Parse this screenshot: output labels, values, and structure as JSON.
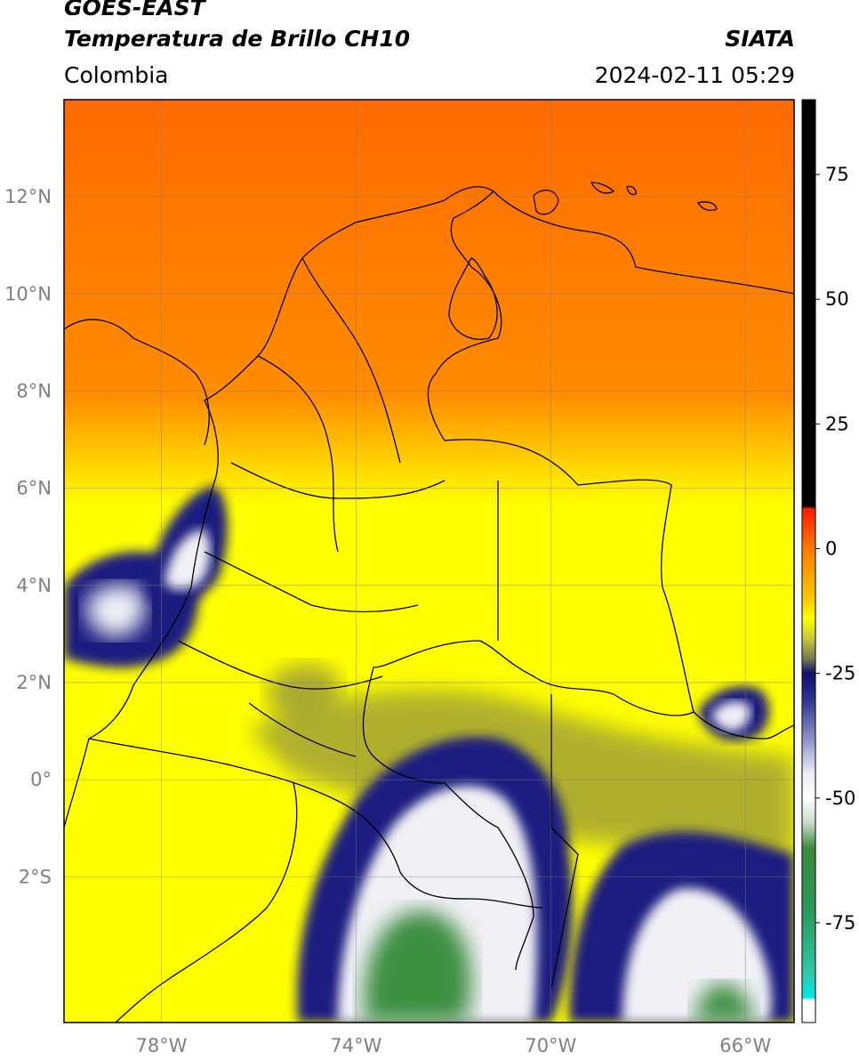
{
  "header": {
    "satellite": "GOES-EAST",
    "product": "Temperatura de Brillo CH10",
    "organization": "SIATA",
    "region": "Colombia",
    "datetime": "2024-02-11 05:29"
  },
  "map": {
    "extent": {
      "lon_min": -80.0,
      "lon_max": -65.0,
      "lat_min": -5.0,
      "lat_max": 14.0
    },
    "latitude_ticks": [
      {
        "value": 12,
        "label": "12°N"
      },
      {
        "value": 10,
        "label": "10°N"
      },
      {
        "value": 8,
        "label": "8°N"
      },
      {
        "value": 6,
        "label": "6°N"
      },
      {
        "value": 4,
        "label": "4°N"
      },
      {
        "value": 2,
        "label": "2°N"
      },
      {
        "value": 0,
        "label": "0°"
      },
      {
        "value": -2,
        "label": "2°S"
      }
    ],
    "longitude_ticks": [
      {
        "value": -78,
        "label": "78°W"
      },
      {
        "value": -74,
        "label": "74°W"
      },
      {
        "value": -70,
        "label": "70°W"
      },
      {
        "value": -66,
        "label": "66°W"
      }
    ],
    "gridlines": true,
    "colors": {
      "very_cold": "#f4fff4",
      "cold_green": "#3e8f42",
      "cold_white": "#f0f0f5",
      "cold_blue": "#1a1a80",
      "cool_olive": "#a2a234",
      "mild_yellow": "#ffff00",
      "warm_orange": "#ff8c00",
      "hot_red_orange": "#ff6a00"
    }
  },
  "colorbar": {
    "range": [
      -95,
      90
    ],
    "ticks": [
      {
        "value": 75,
        "label": "75"
      },
      {
        "value": 50,
        "label": "50"
      },
      {
        "value": 25,
        "label": "25"
      },
      {
        "value": 0,
        "label": "0"
      },
      {
        "value": -25,
        "label": "-25"
      },
      {
        "value": -50,
        "label": "-50"
      },
      {
        "value": -75,
        "label": "-75"
      }
    ],
    "stops": [
      {
        "value": 90,
        "color": "#000000"
      },
      {
        "value": 8.5,
        "color": "#000000"
      },
      {
        "value": 8,
        "color": "#ff1a00"
      },
      {
        "value": 0,
        "color": "#ff7a00"
      },
      {
        "value": -10,
        "color": "#ffc800"
      },
      {
        "value": -14,
        "color": "#ffff00"
      },
      {
        "value": -18,
        "color": "#c8c83c"
      },
      {
        "value": -22,
        "color": "#7a7a50"
      },
      {
        "value": -25,
        "color": "#10106a"
      },
      {
        "value": -30,
        "color": "#2a3290"
      },
      {
        "value": -38,
        "color": "#8c90c8"
      },
      {
        "value": -45,
        "color": "#ececf5"
      },
      {
        "value": -50,
        "color": "#ffffff"
      },
      {
        "value": -55,
        "color": "#c8dcc8"
      },
      {
        "value": -60,
        "color": "#3a8a3a"
      },
      {
        "value": -73,
        "color": "#2a9a5a"
      },
      {
        "value": -85,
        "color": "#30c8a8"
      },
      {
        "value": -90,
        "color": "#00e8e8"
      },
      {
        "value": -90.5,
        "color": "#ffffff"
      },
      {
        "value": -95,
        "color": "#ffffff"
      }
    ]
  }
}
